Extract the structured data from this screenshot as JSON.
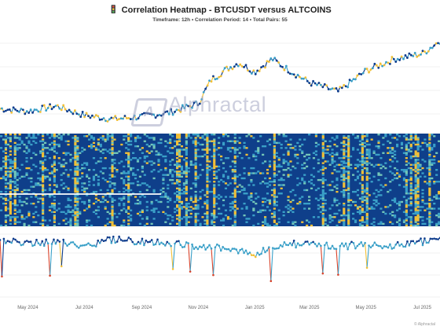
{
  "title": "Correlation Heatmap - BTCUSDT versus ALTCOINS",
  "title_icon": "traffic-light-icon",
  "subtitle": "Timeframe: 12h • Correlation Period: 14  • Total Pairs: 55",
  "watermark": "Alphractal",
  "credit": "© Alphractal",
  "colors": {
    "price_low": "#0d3b8c",
    "price_mid": "#3aa0c8",
    "price_high": "#f2c037",
    "price_extreme": "#d8422a",
    "heatmap_base": "#0f3f8a"
  },
  "chart_data": [
    {
      "type": "line",
      "role": "BTC price colored by correlation",
      "x": [
        "2024-04-01",
        "2024-05-01",
        "2024-06-01",
        "2024-07-01",
        "2024-08-01",
        "2024-09-01",
        "2024-10-01",
        "2024-11-01",
        "2024-11-15",
        "2024-12-01",
        "2024-12-15",
        "2025-01-01",
        "2025-01-20",
        "2025-02-01",
        "2025-03-01",
        "2025-04-01",
        "2025-05-01",
        "2025-06-01",
        "2025-07-01",
        "2025-07-20"
      ],
      "y": [
        66000,
        64000,
        68000,
        61000,
        58000,
        60000,
        63000,
        70000,
        88000,
        96000,
        101000,
        94000,
        104000,
        98000,
        86000,
        79000,
        95000,
        104000,
        108000,
        118000
      ]
    },
    {
      "type": "heatmap",
      "role": "pairwise correlation heatmap",
      "rows": 55
    },
    {
      "type": "line",
      "role": "average correlation",
      "x": [
        "2024-04-01",
        "2024-05-01",
        "2024-06-01",
        "2024-07-01",
        "2024-08-01",
        "2024-09-01",
        "2024-10-01",
        "2024-11-01",
        "2024-12-01",
        "2025-01-01",
        "2025-02-01",
        "2025-03-01",
        "2025-04-01",
        "2025-05-01",
        "2025-06-01",
        "2025-07-01",
        "2025-07-20"
      ],
      "y": [
        0.82,
        0.78,
        0.8,
        0.74,
        0.83,
        0.8,
        0.78,
        0.72,
        0.7,
        0.6,
        0.75,
        0.78,
        0.72,
        0.76,
        0.74,
        0.8,
        0.82
      ]
    }
  ],
  "x_ticks": [
    "May 2024",
    "Jul 2024",
    "Sep 2024",
    "Nov 2024",
    "Jan 2025",
    "Mar 2025",
    "May 2025",
    "Jul 2025"
  ]
}
